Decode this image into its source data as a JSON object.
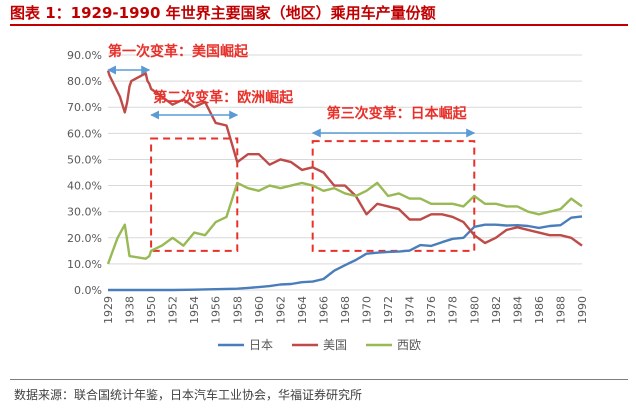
{
  "header": {
    "title": "图表 1：1929-1990 年世界主要国家（地区）乘用车产量份额"
  },
  "footer": {
    "source": "数据来源：联合国统计年鉴，日本汽车工业协会，华福证券研究所"
  },
  "chart_data": {
    "type": "line",
    "ylim": [
      0,
      90
    ],
    "y_ticks": [
      0,
      10,
      20,
      30,
      40,
      50,
      60,
      70,
      80,
      90
    ],
    "y_tick_labels": [
      "0.0%",
      "10.0%",
      "20.0%",
      "30.0%",
      "40.0%",
      "50.0%",
      "60.0%",
      "70.0%",
      "80.0%",
      "90.0%"
    ],
    "x_tick_labels": [
      "1929",
      "1938",
      "1950",
      "1952",
      "1954",
      "1956",
      "1958",
      "1960",
      "1962",
      "1964",
      "1966",
      "1968",
      "1970",
      "1972",
      "1974",
      "1976",
      "1978",
      "1980",
      "1982",
      "1984",
      "1986",
      "1988",
      "1990"
    ],
    "grid": true,
    "legend_position": "bottom",
    "series": [
      {
        "name": "日本",
        "color": "#4a7ebb",
        "points": [
          [
            "1929",
            0
          ],
          [
            "1938",
            0
          ],
          [
            "1950",
            0
          ],
          [
            "1952",
            0
          ],
          [
            "1954",
            0.1
          ],
          [
            "1956",
            0.3
          ],
          [
            "1958",
            0.5
          ],
          [
            "1959",
            0.8
          ],
          [
            "1960",
            1.1
          ],
          [
            "1961",
            1.5
          ],
          [
            "1962",
            2.1
          ],
          [
            "1963",
            2.3
          ],
          [
            "1964",
            3.0
          ],
          [
            "1965",
            3.2
          ],
          [
            "1966",
            4.2
          ],
          [
            "1967",
            7.4
          ],
          [
            "1968",
            9.5
          ],
          [
            "1969",
            11.5
          ],
          [
            "1970",
            13.9
          ],
          [
            "1971",
            14.3
          ],
          [
            "1972",
            14.6
          ],
          [
            "1973",
            14.7
          ],
          [
            "1974",
            15.1
          ],
          [
            "1975",
            17.2
          ],
          [
            "1976",
            16.9
          ],
          [
            "1977",
            18.3
          ],
          [
            "1978",
            19.6
          ],
          [
            "1979",
            20.0
          ],
          [
            "1980",
            24.2
          ],
          [
            "1981",
            25.0
          ],
          [
            "1982",
            25.0
          ],
          [
            "1983",
            24.7
          ],
          [
            "1984",
            24.8
          ],
          [
            "1985",
            24.5
          ],
          [
            "1986",
            23.8
          ],
          [
            "1987",
            24.5
          ],
          [
            "1988",
            24.8
          ],
          [
            "1989",
            27.7
          ],
          [
            "1990",
            28.2
          ]
        ]
      },
      {
        "name": "美国",
        "color": "#be4b48",
        "points": [
          [
            "1929",
            84
          ],
          [
            "1929.7",
            82
          ],
          [
            "1934",
            74
          ],
          [
            "1936",
            68
          ],
          [
            "1937",
            72
          ],
          [
            "1938",
            78
          ],
          [
            "1939",
            80
          ],
          [
            "1947",
            83
          ],
          [
            "1948",
            80
          ],
          [
            "1949",
            79
          ],
          [
            "1950",
            77
          ],
          [
            "1951",
            74
          ],
          [
            "1952",
            71
          ],
          [
            "1953",
            73
          ],
          [
            "1954",
            70
          ],
          [
            "1955",
            72
          ],
          [
            "1956",
            64
          ],
          [
            "1957",
            63
          ],
          [
            "1958",
            49
          ],
          [
            "1959",
            52
          ],
          [
            "1960",
            52
          ],
          [
            "1961",
            48
          ],
          [
            "1962",
            50
          ],
          [
            "1963",
            49
          ],
          [
            "1964",
            46
          ],
          [
            "1965",
            47
          ],
          [
            "1966",
            45
          ],
          [
            "1967",
            40
          ],
          [
            "1968",
            40
          ],
          [
            "1969",
            36
          ],
          [
            "1970",
            29
          ],
          [
            "1971",
            33
          ],
          [
            "1972",
            32
          ],
          [
            "1973",
            31
          ],
          [
            "1974",
            27
          ],
          [
            "1975",
            27
          ],
          [
            "1976",
            29
          ],
          [
            "1977",
            29
          ],
          [
            "1978",
            28
          ],
          [
            "1979",
            26
          ],
          [
            "1980",
            21
          ],
          [
            "1981",
            18
          ],
          [
            "1982",
            20
          ],
          [
            "1983",
            23
          ],
          [
            "1984",
            24
          ],
          [
            "1985",
            23
          ],
          [
            "1986",
            22
          ],
          [
            "1987",
            21
          ],
          [
            "1988",
            21
          ],
          [
            "1989",
            20
          ],
          [
            "1990",
            17
          ]
        ]
      },
      {
        "name": "西欧",
        "color": "#98b954",
        "points": [
          [
            "1929",
            10
          ],
          [
            "1933",
            20
          ],
          [
            "1936",
            25
          ],
          [
            "1938",
            13
          ],
          [
            "1947",
            12
          ],
          [
            "1949",
            13
          ],
          [
            "1950",
            15
          ],
          [
            "1951",
            17
          ],
          [
            "1952",
            20
          ],
          [
            "1953",
            17
          ],
          [
            "1954",
            22
          ],
          [
            "1955",
            21
          ],
          [
            "1956",
            26
          ],
          [
            "1957",
            28
          ],
          [
            "1958",
            41
          ],
          [
            "1959",
            39
          ],
          [
            "1960",
            38
          ],
          [
            "1961",
            40
          ],
          [
            "1962",
            39
          ],
          [
            "1963",
            40
          ],
          [
            "1964",
            41
          ],
          [
            "1965",
            40
          ],
          [
            "1966",
            38
          ],
          [
            "1967",
            39
          ],
          [
            "1968",
            37
          ],
          [
            "1969",
            36
          ],
          [
            "1970",
            38
          ],
          [
            "1971",
            41
          ],
          [
            "1972",
            36
          ],
          [
            "1973",
            37
          ],
          [
            "1974",
            35
          ],
          [
            "1975",
            35
          ],
          [
            "1976",
            33
          ],
          [
            "1977",
            33
          ],
          [
            "1978",
            33
          ],
          [
            "1979",
            32
          ],
          [
            "1980",
            36
          ],
          [
            "1981",
            33
          ],
          [
            "1982",
            33
          ],
          [
            "1983",
            32
          ],
          [
            "1984",
            32
          ],
          [
            "1985",
            30
          ],
          [
            "1986",
            29
          ],
          [
            "1987",
            30
          ],
          [
            "1988",
            31
          ],
          [
            "1989",
            35
          ],
          [
            "1990",
            32
          ]
        ]
      }
    ],
    "annotations": [
      {
        "text": "第一次变革：美国崛起",
        "span": [
          "1929",
          "1949"
        ]
      },
      {
        "text": "第二次变革：欧洲崛起",
        "span": [
          "1950",
          "1958"
        ]
      },
      {
        "text": "第三次变革：日本崛起",
        "span": [
          "1965",
          "1980"
        ]
      }
    ],
    "highlight_regions": [
      {
        "name": "europe-rise",
        "x_range": [
          "1950",
          "1958"
        ],
        "y_range": [
          15,
          58
        ]
      },
      {
        "name": "japan-rise",
        "x_range": [
          "1965",
          "1980"
        ],
        "y_range": [
          15,
          57
        ]
      }
    ],
    "annotation_color": "#e8312a"
  }
}
